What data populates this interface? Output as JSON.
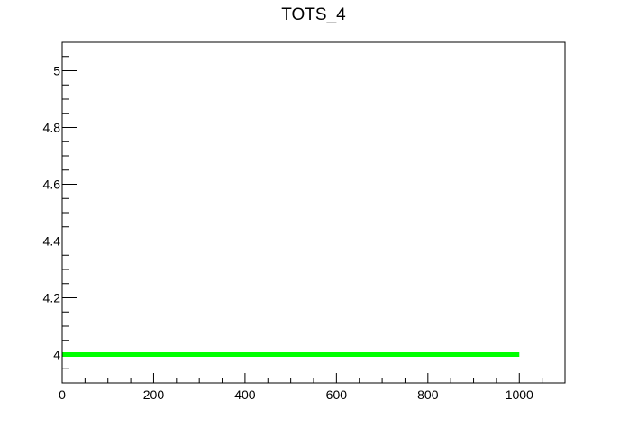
{
  "chart_data": {
    "type": "line",
    "title": "TOTS_4",
    "xlabel": "",
    "ylabel": "",
    "xlim": [
      0,
      1100
    ],
    "ylim": [
      3.9,
      5.1
    ],
    "x_ticks": [
      0,
      200,
      400,
      600,
      800,
      1000
    ],
    "x_tick_labels": [
      "0",
      "200",
      "400",
      "600",
      "800",
      "1000"
    ],
    "y_ticks": [
      4,
      4.2,
      4.4,
      4.6,
      4.8,
      5
    ],
    "y_tick_labels": [
      "4",
      "4.2",
      "4.4",
      "4.6",
      "4.8",
      "5"
    ],
    "grid": false,
    "series": [
      {
        "color": "#00ff00",
        "x": [
          0,
          1000
        ],
        "values": [
          4,
          4
        ]
      }
    ]
  }
}
